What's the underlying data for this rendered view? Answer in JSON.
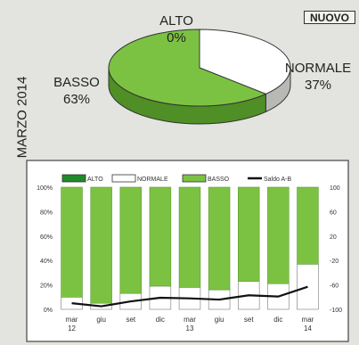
{
  "badge": "NUOVO",
  "side_label": "MARZO 2014",
  "pie": {
    "labels": [
      {
        "name": "ALTO",
        "pct": "0%"
      },
      {
        "name": "NORMALE",
        "pct": "37%"
      },
      {
        "name": "BASSO",
        "pct": "63%"
      }
    ]
  },
  "colors": {
    "alto": "#1f8a2a",
    "normale": "#ffffff",
    "basso": "#7cc242",
    "saldo": "#111111"
  },
  "chart_data": [
    {
      "type": "pie",
      "categories": [
        "ALTO",
        "NORMALE",
        "BASSO"
      ],
      "values": [
        0,
        37,
        63
      ]
    },
    {
      "type": "bar",
      "stacked": true,
      "legend": [
        "ALTO",
        "NORMALE",
        "BASSO",
        "Saldo A-B"
      ],
      "legend_position": "top",
      "categories": [
        "mar 12",
        "giu",
        "set",
        "dic",
        "mar 13",
        "giu",
        "set",
        "dic",
        "mar 14"
      ],
      "x_tick_lines": [
        [
          "mar",
          "12"
        ],
        [
          "giu"
        ],
        [
          "set"
        ],
        [
          "dic"
        ],
        [
          "mar",
          "13"
        ],
        [
          "giu"
        ],
        [
          "set"
        ],
        [
          "dic"
        ],
        [
          "mar",
          "14"
        ]
      ],
      "series": [
        {
          "name": "ALTO",
          "values": [
            0,
            0,
            0,
            0,
            0,
            0,
            0,
            0,
            0
          ]
        },
        {
          "name": "NORMALE",
          "values": [
            10,
            5,
            13,
            19,
            18,
            16,
            23,
            21,
            37
          ]
        },
        {
          "name": "BASSO",
          "values": [
            90,
            95,
            87,
            81,
            82,
            84,
            77,
            79,
            63
          ]
        },
        {
          "name": "Saldo A-B",
          "axis": "right",
          "values": [
            -90,
            -95,
            -87,
            -81,
            -82,
            -84,
            -77,
            -79,
            -63
          ]
        }
      ],
      "y_left": {
        "ylim": [
          0,
          100
        ],
        "ticks": [
          "0%",
          "20%",
          "40%",
          "60%",
          "80%",
          "100%"
        ]
      },
      "y_right": {
        "ylim": [
          -100,
          100
        ],
        "ticks": [
          "100",
          "60",
          "20",
          "-20",
          "-60",
          "-100"
        ]
      }
    }
  ]
}
